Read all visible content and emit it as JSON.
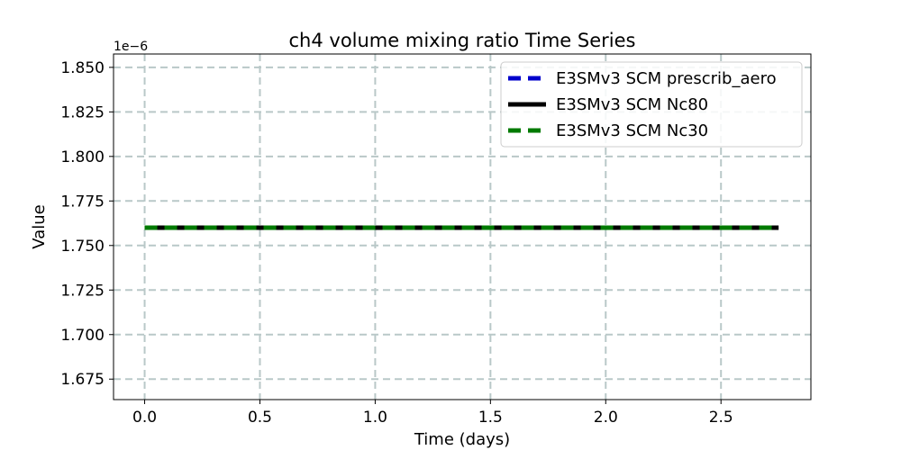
{
  "chart_data": {
    "type": "line",
    "title": "ch4 volume mixing ratio Time Series",
    "xlabel": "Time (days)",
    "ylabel": "Value",
    "y_offset_text": "1e−6",
    "y_scale": 1e-06,
    "xlim": [
      -0.135,
      2.89
    ],
    "ylim": [
      1.6635,
      1.8575
    ],
    "xticks": [
      0.0,
      0.5,
      1.0,
      1.5,
      2.0,
      2.5
    ],
    "xtick_labels": [
      "0.0",
      "0.5",
      "1.0",
      "1.5",
      "2.0",
      "2.5"
    ],
    "yticks": [
      1.675,
      1.7,
      1.725,
      1.75,
      1.775,
      1.8,
      1.825,
      1.85
    ],
    "ytick_labels": [
      "1.675",
      "1.700",
      "1.725",
      "1.750",
      "1.775",
      "1.800",
      "1.825",
      "1.850"
    ],
    "grid": true,
    "legend_position": "top-right",
    "series": [
      {
        "name": "E3SMv3 SCM prescrib_aero",
        "color": "#0000cc",
        "style": "dashed",
        "x": [
          0.0,
          2.75
        ],
        "y": [
          1.76,
          1.76
        ]
      },
      {
        "name": "E3SMv3 SCM Nc80",
        "color": "#000000",
        "style": "solid",
        "x": [
          0.0,
          2.75
        ],
        "y": [
          1.76,
          1.76
        ]
      },
      {
        "name": "E3SMv3 SCM Nc30",
        "color": "#007a00",
        "style": "dashed",
        "x": [
          0.0,
          2.75
        ],
        "y": [
          1.76,
          1.76
        ]
      }
    ]
  }
}
